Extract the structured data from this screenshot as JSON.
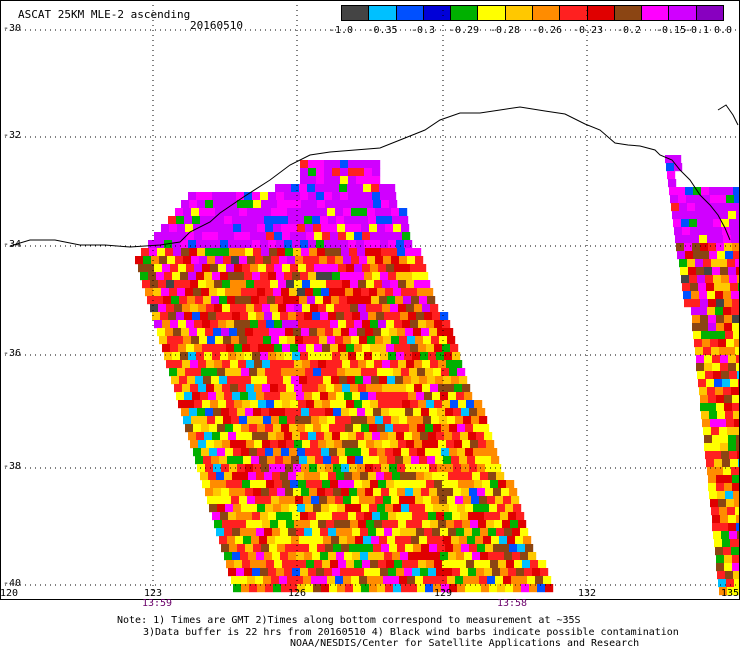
{
  "header": {
    "title": "ASCAT 25KM MLE-2 ascending",
    "date": "20160510"
  },
  "legend": {
    "colors": [
      "#444444",
      "#00c0ff",
      "#0050ff",
      "#0000d8",
      "#00b000",
      "#ffff00",
      "#ffc800",
      "#ff8c00",
      "#ff2020",
      "#e00000",
      "#8b4513",
      "#ff00ff",
      "#d000ff",
      "#8800c0"
    ],
    "ticks": [
      "-1.0",
      "-0.35",
      "-0.3",
      "-0.29",
      "-0.28",
      "-0.26",
      "-0.23",
      "-0.2",
      "-0.15",
      "-0.1",
      "0.0"
    ]
  },
  "axes": {
    "lat_labels": [
      "-30",
      "-32",
      "-34",
      "-36",
      "-38",
      "-40"
    ],
    "lon_labels": [
      "120",
      "123",
      "126",
      "129",
      "132",
      "135"
    ]
  },
  "times": [
    "13:59",
    "13:58"
  ],
  "notes": {
    "line1": "Note: 1) Times are GMT 2)Times along bottom correspond to measurement at ~35S",
    "line2": "3)Data buffer is 22 hrs from 20160510 4) Black wind barbs indicate possible contamination",
    "line3": "NOAA/NESDIS/Center for Satellite Applications and Research"
  }
}
